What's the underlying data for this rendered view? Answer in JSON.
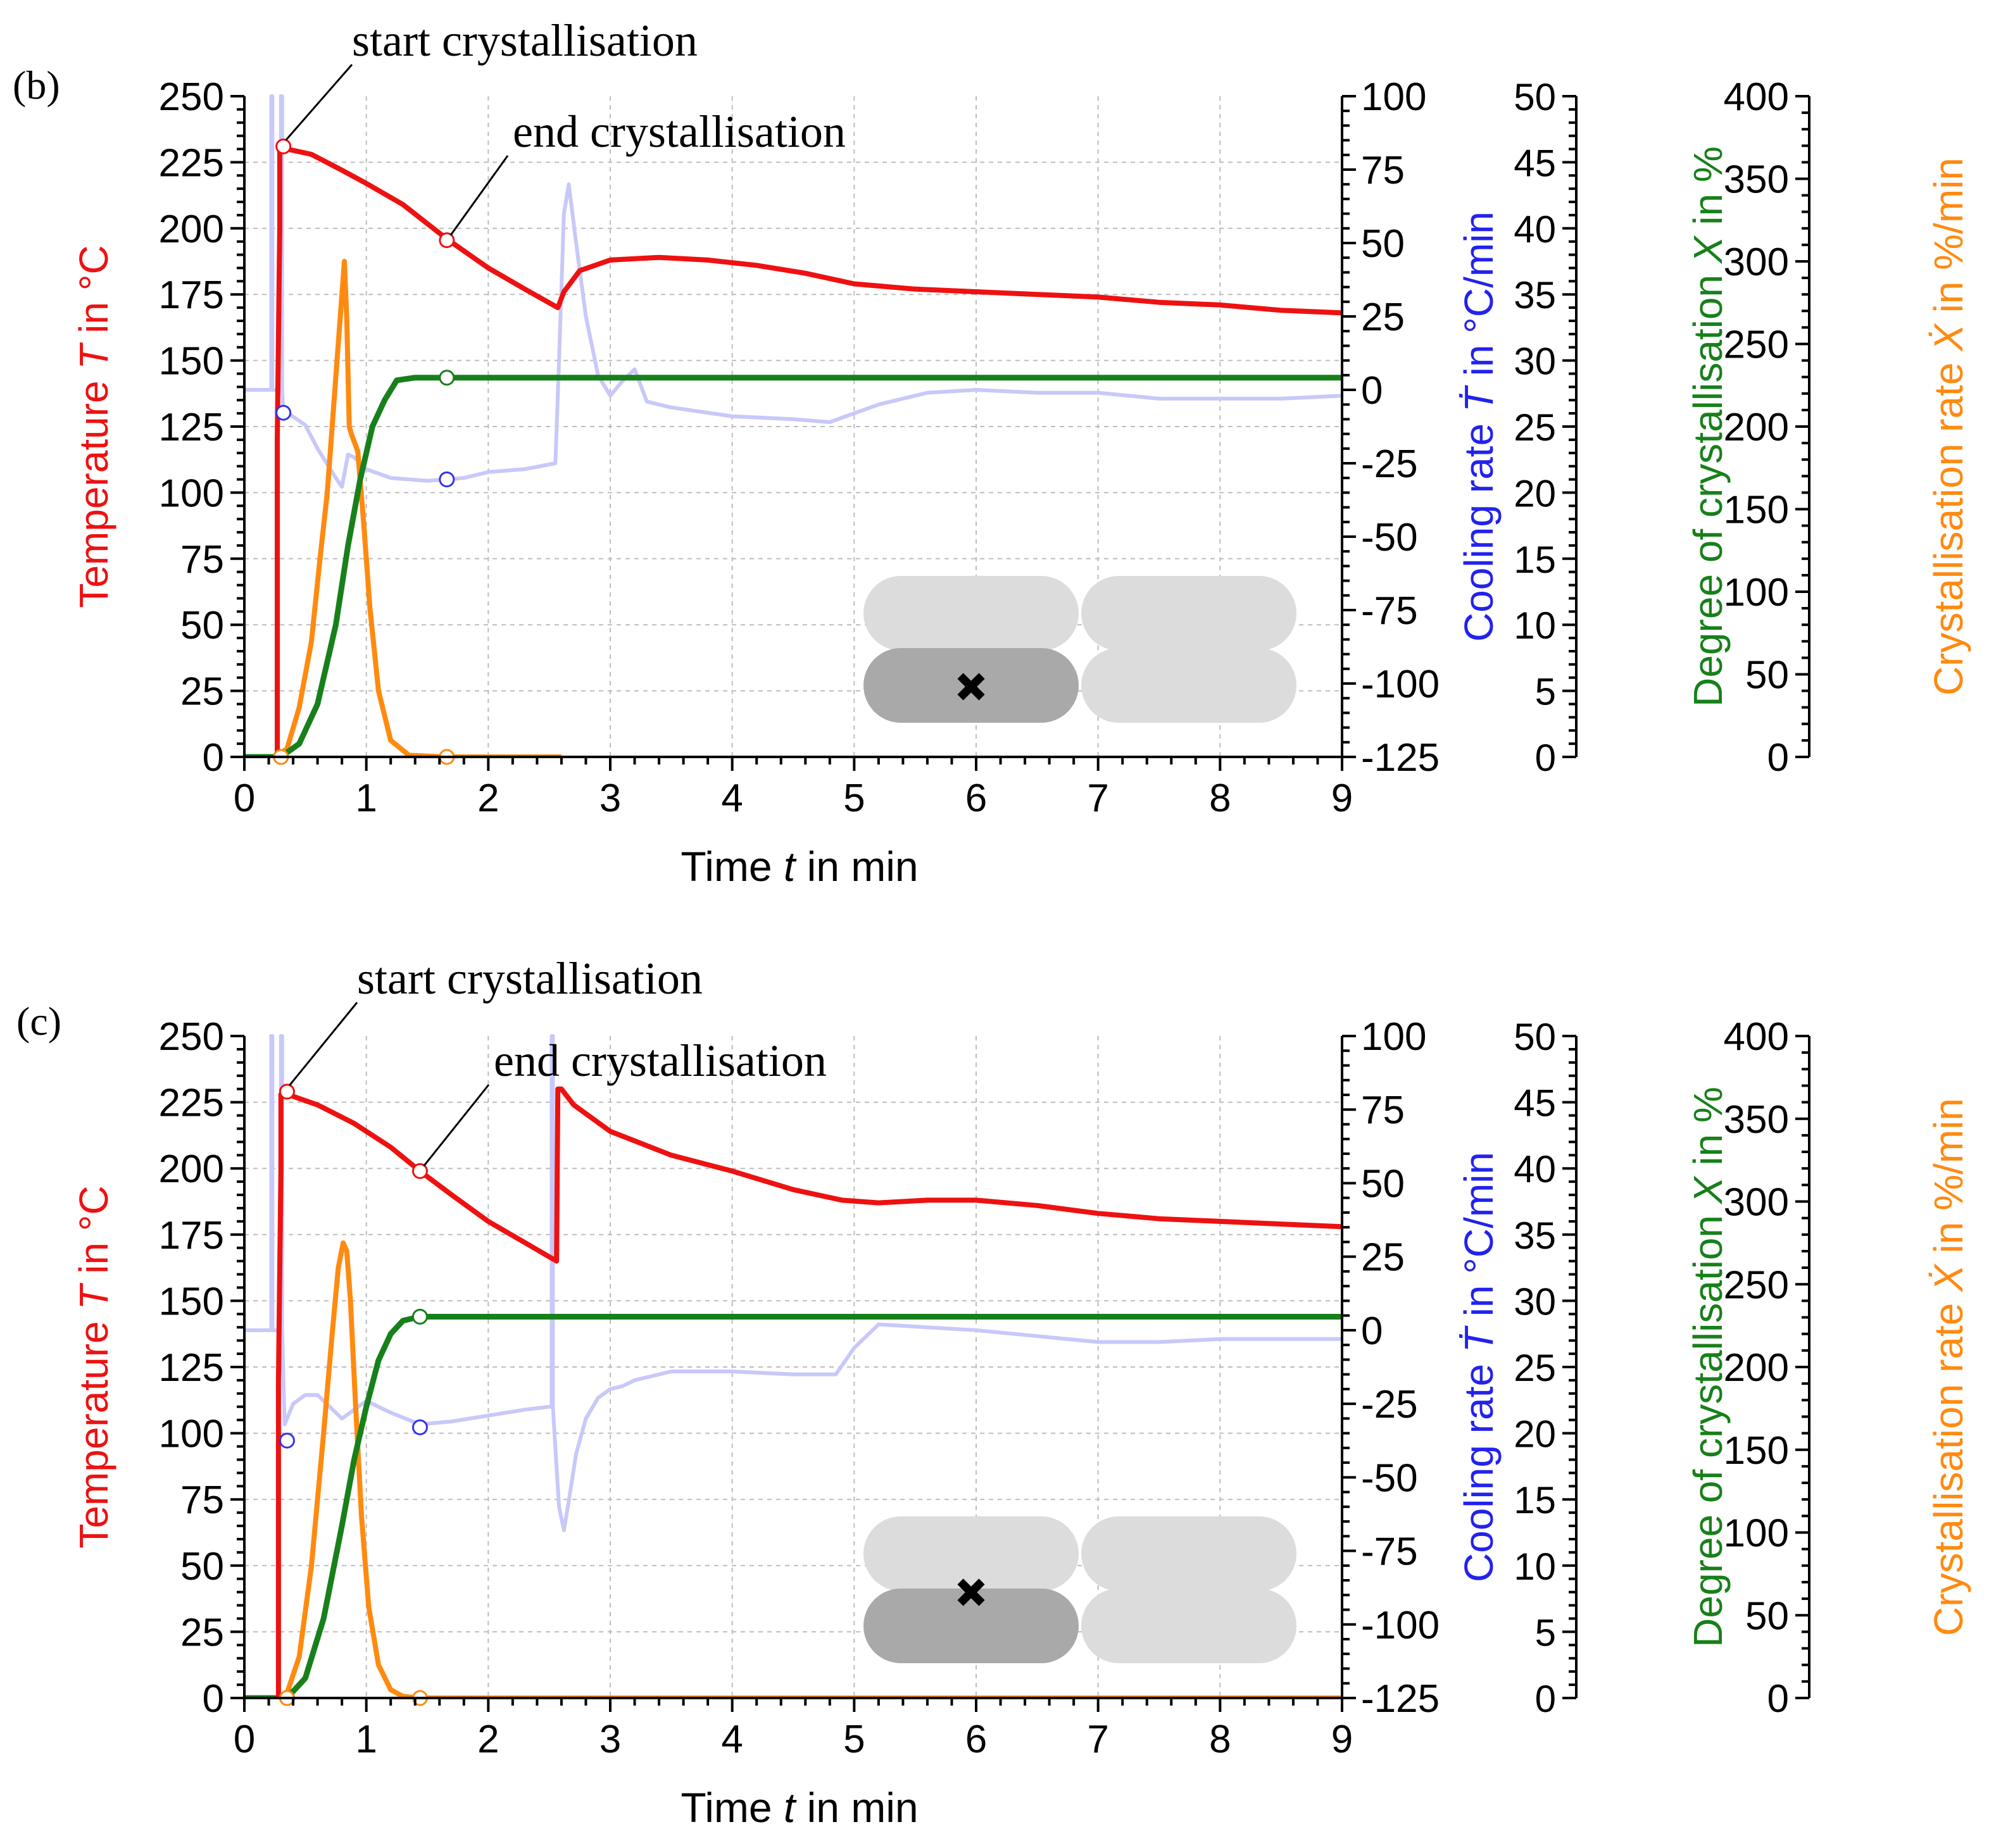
{
  "colors": {
    "temperature": "#ee1111",
    "cooling": "#c8c8fa",
    "degree": "#17801a",
    "rate": "#ff8a10",
    "grid": "#bdbdbd",
    "inset_dark": "#a9a9a9",
    "inset_light": "#dcdcdc"
  },
  "annotations": {
    "start": "start crystallisation",
    "end": "end crystallisation"
  },
  "chart_data": [
    {
      "panel_label": "(b)",
      "type": "line",
      "xlabel": {
        "prefix": "Time ",
        "var": "t",
        "suffix": " in min"
      },
      "xlim": [
        0,
        9
      ],
      "xticks": [
        "0",
        "1",
        "2",
        "3",
        "4",
        "5",
        "6",
        "7",
        "8",
        "9"
      ],
      "axes": {
        "temperature": {
          "label": {
            "prefix": "Temperature ",
            "var": "T",
            "suffix": " in °C"
          },
          "lim": [
            0,
            250
          ],
          "ticks": [
            "0",
            "25",
            "50",
            "75",
            "100",
            "125",
            "150",
            "175",
            "200",
            "225",
            "250"
          ]
        },
        "cooling": {
          "label": {
            "prefix": "Cooling rate ",
            "var": "Ṫ",
            "suffix": " in °C/min"
          },
          "lim": [
            -125,
            100
          ],
          "ticks": [
            "-125",
            "-100",
            "-75",
            "-50",
            "-25",
            "0",
            "25",
            "50",
            "75",
            "100"
          ]
        },
        "degree": {
          "label": {
            "prefix": "Degree of crystallisation ",
            "var": "X",
            "suffix": " in %"
          },
          "lim": [
            0,
            50
          ],
          "ticks": [
            "0",
            "5",
            "10",
            "15",
            "20",
            "25",
            "30",
            "35",
            "40",
            "45",
            "50"
          ]
        },
        "rate": {
          "label": {
            "prefix": "Crystallisation rate ",
            "var": "Ẋ",
            "suffix": " in %/min"
          },
          "lim": [
            0,
            400
          ],
          "ticks": [
            "0",
            "50",
            "100",
            "150",
            "200",
            "250",
            "300",
            "350",
            "400"
          ]
        }
      },
      "series": [
        {
          "name": "temperature",
          "axis": "temperature",
          "x": [
            0.27,
            0.27,
            0.29,
            0.29,
            0.35,
            0.55,
            0.8,
            1.0,
            1.3,
            1.66,
            2.0,
            2.3,
            2.57,
            2.62,
            2.75,
            3.0,
            3.4,
            3.8,
            4.2,
            4.6,
            5.0,
            5.5,
            6.0,
            6.5,
            7.0,
            7.5,
            8.0,
            8.5,
            9.0
          ],
          "y": [
            0,
            120,
            200,
            230,
            230,
            228,
            222,
            217,
            209,
            196,
            185,
            177,
            170,
            176,
            184,
            188,
            189,
            188,
            186,
            183,
            179,
            177,
            176,
            175,
            174,
            172,
            171,
            169,
            168
          ]
        },
        {
          "name": "cooling rate",
          "axis": "cooling",
          "x": [
            0.0,
            0.2,
            0.22,
            0.22,
            0.23,
            0.23,
            0.27,
            0.3,
            0.3,
            0.31,
            0.31,
            0.32,
            0.36,
            0.5,
            0.6,
            0.75,
            0.8,
            0.85,
            0.9,
            1.0,
            1.2,
            1.5,
            1.8,
            2.0,
            2.3,
            2.55,
            2.58,
            2.62,
            2.66,
            2.72,
            2.8,
            2.9,
            3.0,
            3.1,
            3.2,
            3.3,
            3.5,
            4.0,
            4.5,
            4.8,
            5.2,
            5.6,
            6.0,
            6.5,
            7.0,
            7.5,
            8.0,
            8.5,
            9.0
          ],
          "y": [
            0,
            0,
            0,
            100,
            100,
            0,
            0,
            0,
            100,
            100,
            0,
            -8,
            -8,
            -12,
            -20,
            -30,
            -33,
            -22,
            -23,
            -27,
            -30,
            -31,
            -30,
            -28,
            -27,
            -25,
            10,
            60,
            70,
            50,
            25,
            5,
            -2,
            3,
            7,
            -4,
            -6,
            -9,
            -10,
            -11,
            -5,
            -1,
            0,
            -1,
            -1,
            -3,
            -3,
            -3,
            -2
          ]
        },
        {
          "name": "degree of crystallisation",
          "axis": "degree",
          "x": [
            0.0,
            0.3,
            0.45,
            0.6,
            0.75,
            0.85,
            0.95,
            1.05,
            1.15,
            1.25,
            1.4,
            2.0,
            9.0
          ],
          "y": [
            0,
            0,
            1,
            4,
            10,
            16,
            21,
            25,
            27,
            28.5,
            28.7,
            28.7,
            28.7
          ]
        },
        {
          "name": "crystallisation rate",
          "axis": "rate",
          "x": [
            0.25,
            0.35,
            0.45,
            0.55,
            0.62,
            0.68,
            0.72,
            0.76,
            0.79,
            0.82,
            0.84,
            0.86,
            0.88,
            0.93,
            0.98,
            1.03,
            1.1,
            1.2,
            1.35,
            1.66,
            2.0,
            2.6
          ],
          "y": [
            0,
            5,
            30,
            70,
            120,
            160,
            200,
            240,
            270,
            300,
            265,
            200,
            195,
            185,
            140,
            90,
            40,
            10,
            1,
            0,
            0,
            0
          ]
        }
      ],
      "markers": [
        {
          "series": "temperature",
          "x": 0.32,
          "y": 231
        },
        {
          "series": "temperature",
          "x": 1.66,
          "y": 195.5
        },
        {
          "series": "cooling rate",
          "x": 0.32,
          "y": -7.8
        },
        {
          "series": "cooling rate",
          "x": 1.66,
          "y": -30.5
        },
        {
          "series": "degree of crystallisation",
          "x": 0.3,
          "y": 0
        },
        {
          "series": "degree of crystallisation",
          "x": 1.66,
          "y": 28.7
        },
        {
          "series": "crystallisation rate",
          "x": 0.3,
          "y": 0
        },
        {
          "series": "crystallisation rate",
          "x": 1.66,
          "y": 0
        }
      ],
      "inset_marked_cell": "bottom-left",
      "inset_mark_height": "lower"
    },
    {
      "panel_label": "(c)",
      "type": "line",
      "xlabel": {
        "prefix": "Time ",
        "var": "t",
        "suffix": " in min"
      },
      "xlim": [
        0,
        9
      ],
      "xticks": [
        "0",
        "1",
        "2",
        "3",
        "4",
        "5",
        "6",
        "7",
        "8",
        "9"
      ],
      "axes": {
        "temperature": {
          "label": {
            "prefix": "Temperature ",
            "var": "T",
            "suffix": " in °C"
          },
          "lim": [
            0,
            250
          ],
          "ticks": [
            "0",
            "25",
            "50",
            "75",
            "100",
            "125",
            "150",
            "175",
            "200",
            "225",
            "250"
          ]
        },
        "cooling": {
          "label": {
            "prefix": "Cooling rate ",
            "var": "Ṫ",
            "suffix": " in °C/min"
          },
          "lim": [
            -125,
            100
          ],
          "ticks": [
            "-125",
            "-100",
            "-75",
            "-50",
            "-25",
            "0",
            "25",
            "50",
            "75",
            "100"
          ]
        },
        "degree": {
          "label": {
            "prefix": "Degree of crystallisation ",
            "var": "X",
            "suffix": " in %"
          },
          "lim": [
            0,
            50
          ],
          "ticks": [
            "0",
            "5",
            "10",
            "15",
            "20",
            "25",
            "30",
            "35",
            "40",
            "45",
            "50"
          ]
        },
        "rate": {
          "label": {
            "prefix": "Crystallisation rate ",
            "var": "Ẋ",
            "suffix": " in %/min"
          },
          "lim": [
            0,
            400
          ],
          "ticks": [
            "0",
            "50",
            "100",
            "150",
            "200",
            "250",
            "300",
            "350",
            "400"
          ]
        }
      },
      "series": [
        {
          "name": "temperature",
          "axis": "temperature",
          "x": [
            0.28,
            0.28,
            0.3,
            0.3,
            0.35,
            0.6,
            0.9,
            1.2,
            1.44,
            1.7,
            2.0,
            2.3,
            2.56,
            2.57,
            2.6,
            2.7,
            3.0,
            3.5,
            4.0,
            4.5,
            4.9,
            5.2,
            5.6,
            6.0,
            6.5,
            7.0,
            7.5,
            8.0,
            8.5,
            9.0
          ],
          "y": [
            0,
            120,
            200,
            228,
            228,
            224,
            217,
            208,
            199,
            190,
            180,
            172,
            165,
            230,
            230,
            224,
            214,
            205,
            199,
            192,
            188,
            187,
            188,
            188,
            186,
            183,
            181,
            180,
            179,
            178
          ]
        },
        {
          "name": "cooling rate",
          "axis": "cooling",
          "x": [
            0.0,
            0.2,
            0.22,
            0.22,
            0.23,
            0.23,
            0.27,
            0.3,
            0.3,
            0.31,
            0.31,
            0.33,
            0.4,
            0.5,
            0.6,
            0.8,
            1.0,
            1.2,
            1.44,
            1.7,
            2.0,
            2.3,
            2.5,
            2.52,
            2.52,
            2.53,
            2.53,
            2.55,
            2.58,
            2.62,
            2.66,
            2.72,
            2.8,
            2.9,
            3.0,
            3.1,
            3.2,
            3.5,
            4.0,
            4.5,
            4.85,
            5.0,
            5.2,
            5.6,
            6.0,
            6.5,
            7.0,
            7.5,
            8.0,
            8.5,
            9.0
          ],
          "y": [
            0,
            0,
            0,
            100,
            100,
            0,
            0,
            0,
            100,
            100,
            0,
            -32,
            -25,
            -22,
            -22,
            -30,
            -24,
            -28,
            -32,
            -31,
            -29,
            -27,
            -26,
            -26,
            100,
            100,
            -26,
            -40,
            -60,
            -68,
            -58,
            -42,
            -30,
            -23,
            -20,
            -19,
            -17,
            -14,
            -14,
            -15,
            -15,
            -6,
            2,
            1,
            0,
            -2,
            -4,
            -4,
            -3,
            -3,
            -3
          ]
        },
        {
          "name": "degree of crystallisation",
          "axis": "degree",
          "x": [
            0.0,
            0.35,
            0.5,
            0.65,
            0.8,
            0.9,
            1.0,
            1.1,
            1.2,
            1.3,
            1.44,
            2.0,
            9.0
          ],
          "y": [
            0,
            0,
            1.5,
            6,
            13,
            18,
            22,
            25.5,
            27.5,
            28.5,
            28.8,
            28.8,
            28.8
          ]
        },
        {
          "name": "crystallisation rate",
          "axis": "rate",
          "x": [
            0.3,
            0.35,
            0.45,
            0.55,
            0.65,
            0.72,
            0.77,
            0.81,
            0.84,
            0.87,
            0.91,
            0.96,
            1.02,
            1.1,
            1.2,
            1.3,
            1.44,
            2.0,
            9.0
          ],
          "y": [
            0,
            3,
            25,
            80,
            160,
            220,
            260,
            275,
            270,
            240,
            180,
            110,
            55,
            20,
            5,
            1,
            0,
            0,
            0
          ]
        }
      ],
      "markers": [
        {
          "series": "temperature",
          "x": 0.35,
          "y": 229
        },
        {
          "series": "temperature",
          "x": 1.44,
          "y": 199
        },
        {
          "series": "cooling rate",
          "x": 0.35,
          "y": -37.5
        },
        {
          "series": "cooling rate",
          "x": 1.44,
          "y": -33
        },
        {
          "series": "degree of crystallisation",
          "x": 0.35,
          "y": 0
        },
        {
          "series": "degree of crystallisation",
          "x": 1.44,
          "y": 28.8
        },
        {
          "series": "crystallisation rate",
          "x": 0.35,
          "y": 0
        },
        {
          "series": "crystallisation rate",
          "x": 1.44,
          "y": 0
        }
      ],
      "inset_marked_cell": "bottom-left",
      "inset_mark_height": "upper"
    }
  ]
}
